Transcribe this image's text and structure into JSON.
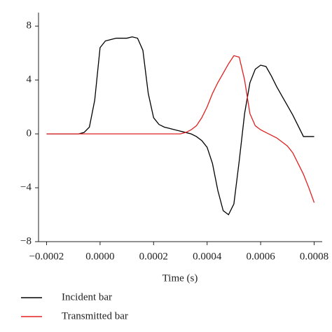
{
  "chart_data": {
    "type": "line",
    "x_label": "Time (s)",
    "x": [
      -0.0002,
      -0.00018,
      -0.00016,
      -0.00014,
      -0.00012,
      -0.0001,
      -8e-05,
      -6e-05,
      -4e-05,
      -2e-05,
      0,
      2e-05,
      4e-05,
      6e-05,
      8e-05,
      0.0001,
      0.00012,
      0.00014,
      0.00016,
      0.00018,
      0.0002,
      0.00022,
      0.00024,
      0.00026,
      0.00028,
      0.0003,
      0.00032,
      0.00034,
      0.00036,
      0.00038,
      0.0004,
      0.00042,
      0.00044,
      0.00046,
      0.00048,
      0.0005,
      0.00052,
      0.00054,
      0.00056,
      0.00058,
      0.0006,
      0.00062,
      0.00064,
      0.00066,
      0.00068,
      0.0007,
      0.00072,
      0.00074,
      0.00076,
      0.00078,
      0.0008
    ],
    "series": [
      {
        "name": "Incident bar",
        "color": "#000000",
        "values": [
          0,
          0,
          0,
          0,
          0,
          0,
          0,
          0.1,
          0.5,
          2.5,
          6.4,
          6.9,
          7.0,
          7.1,
          7.1,
          7.1,
          7.2,
          7.1,
          6.2,
          3,
          1.2,
          0.7,
          0.5,
          0.4,
          0.3,
          0.2,
          0.1,
          0,
          -0.2,
          -0.5,
          -1,
          -2.2,
          -4.2,
          -5.7,
          -6.0,
          -5.2,
          -2,
          1.5,
          3.8,
          4.8,
          5.1,
          5.0,
          4.3,
          3.5,
          2.8,
          2.1,
          1.4,
          0.6,
          -0.2,
          -0.2,
          -0.2
        ]
      },
      {
        "name": "Transmitted bar",
        "color": "#e02020",
        "values": [
          0,
          0,
          0,
          0,
          0,
          0,
          0,
          0,
          0,
          0,
          0,
          0,
          0,
          0,
          0,
          0,
          0,
          0,
          0,
          0,
          0,
          0,
          0,
          0,
          0,
          0,
          0.1,
          0.3,
          0.6,
          1.2,
          2,
          3,
          3.8,
          4.5,
          5.2,
          5.8,
          5.7,
          4,
          1.5,
          0.6,
          0.3,
          0.1,
          -0.1,
          -0.3,
          -0.6,
          -0.9,
          -1.4,
          -2.2,
          -3,
          -4,
          -5.1
        ]
      }
    ],
    "xlim": [
      -0.00023,
      0.00083
    ],
    "xticks": [
      {
        "value": -0.0002,
        "label": "−0.0002"
      },
      {
        "value": 0,
        "label": "0.0000"
      },
      0.0002,
      0.0004,
      0.0006,
      0.0008
    ],
    "ylim": [
      -8,
      9
    ],
    "yticks": [
      {
        "value": -8,
        "label": "−8"
      },
      {
        "value": -4,
        "label": "−4"
      },
      0,
      4,
      8
    ]
  }
}
